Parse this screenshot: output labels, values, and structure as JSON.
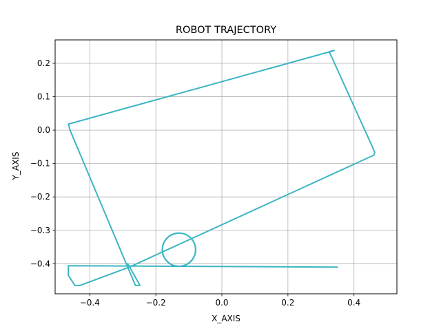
{
  "chart_data": {
    "type": "line",
    "title": "ROBOT TRAJECTORY",
    "xlabel": "X_AXIS",
    "ylabel": "Y_AXIS",
    "xlim": [
      -0.505,
      0.53
    ],
    "ylim": [
      -0.49,
      0.27
    ],
    "xticks": [
      -0.4,
      -0.2,
      0.0,
      0.2,
      0.4
    ],
    "xtick_labels": [
      "−0.4",
      "−0.2",
      "0.0",
      "0.2",
      "0.4"
    ],
    "yticks": [
      0.2,
      0.1,
      0.0,
      -0.1,
      -0.2,
      -0.3,
      -0.4
    ],
    "ytick_labels": [
      "0.2",
      "0.1",
      "0.0",
      "−0.1",
      "−0.2",
      "−0.3",
      "−0.4"
    ],
    "grid": true,
    "series": [
      {
        "color": "#3bb5c2",
        "x": [
          0.35,
          -0.465,
          -0.465,
          -0.445,
          -0.43,
          -0.28,
          0.46,
          0.463,
          0.458,
          0.325,
          0.34,
          -0.465,
          -0.46,
          -0.262,
          -0.248,
          -0.285
        ],
        "y": [
          -0.41,
          -0.406,
          -0.435,
          -0.465,
          -0.465,
          -0.41,
          -0.075,
          -0.067,
          -0.055,
          0.235,
          0.238,
          0.018,
          0.0,
          -0.465,
          -0.465,
          -0.4
        ]
      },
      {
        "color": "#3bb5c2",
        "shape": "circle",
        "center": [
          -0.13,
          -0.358
        ],
        "radius": 0.05
      }
    ]
  }
}
